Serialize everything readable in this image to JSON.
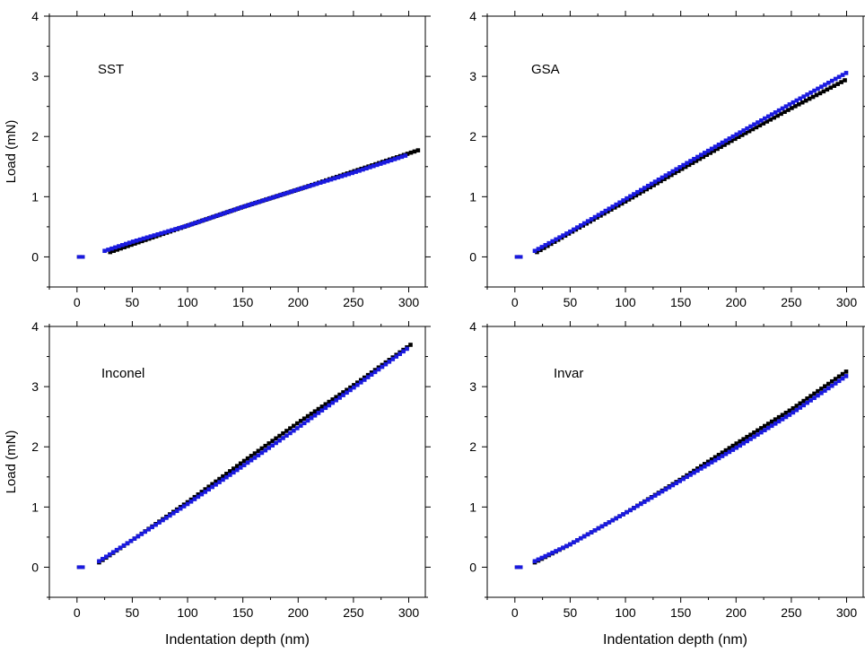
{
  "chart_data": [
    {
      "type": "scatter",
      "panel_label": "SST",
      "xlabel": "",
      "ylabel": "Load (mN)",
      "xlim": [
        -25,
        315
      ],
      "ylim": [
        -0.5,
        4
      ],
      "xticks": [
        0,
        50,
        100,
        150,
        200,
        250,
        300
      ],
      "yticks": [
        0,
        1,
        2,
        3,
        4
      ],
      "series": [
        {
          "color": "#000000",
          "x": [
            2,
            5,
            30,
            60,
            100,
            150,
            200,
            250,
            310
          ],
          "y": [
            0,
            0,
            0.08,
            0.27,
            0.52,
            0.83,
            1.12,
            1.42,
            1.78
          ]
        },
        {
          "color": "#1a1adf",
          "x": [
            2,
            5,
            25,
            50,
            100,
            150,
            200,
            250,
            300
          ],
          "y": [
            0,
            0,
            0.1,
            0.25,
            0.52,
            0.83,
            1.12,
            1.4,
            1.7
          ]
        }
      ]
    },
    {
      "type": "scatter",
      "panel_label": "GSA",
      "xlabel": "",
      "ylabel": "",
      "xlim": [
        -25,
        315
      ],
      "ylim": [
        -0.5,
        4
      ],
      "xticks": [
        0,
        50,
        100,
        150,
        200,
        250,
        300
      ],
      "yticks": [
        0,
        1,
        2,
        3,
        4
      ],
      "series": [
        {
          "color": "#000000",
          "x": [
            2,
            5,
            20,
            50,
            100,
            150,
            200,
            250,
            300
          ],
          "y": [
            0,
            0,
            0.08,
            0.4,
            0.92,
            1.45,
            1.97,
            2.47,
            2.95
          ]
        },
        {
          "color": "#1a1adf",
          "x": [
            2,
            5,
            18,
            50,
            100,
            150,
            200,
            250,
            302
          ],
          "y": [
            0,
            0,
            0.1,
            0.42,
            0.96,
            1.5,
            2.03,
            2.55,
            3.08
          ]
        }
      ]
    },
    {
      "type": "scatter",
      "panel_label": "Inconel",
      "xlabel": "Indentation depth (nm)",
      "ylabel": "Load (mN)",
      "xlim": [
        -25,
        315
      ],
      "ylim": [
        -0.5,
        4
      ],
      "xticks": [
        0,
        50,
        100,
        150,
        200,
        250,
        300
      ],
      "yticks": [
        0,
        1,
        2,
        3,
        4
      ],
      "series": [
        {
          "color": "#000000",
          "x": [
            2,
            5,
            20,
            50,
            100,
            150,
            200,
            250,
            302
          ],
          "y": [
            0,
            0,
            0.08,
            0.45,
            1.08,
            1.75,
            2.4,
            3.02,
            3.7
          ]
        },
        {
          "color": "#1a1adf",
          "x": [
            2,
            5,
            20,
            50,
            100,
            150,
            200,
            250,
            300
          ],
          "y": [
            0,
            0,
            0.1,
            0.45,
            1.05,
            1.68,
            2.32,
            2.98,
            3.65
          ]
        }
      ]
    },
    {
      "type": "scatter",
      "panel_label": "Invar",
      "xlabel": "Indentation depth (nm)",
      "ylabel": "",
      "xlim": [
        -25,
        315
      ],
      "ylim": [
        -0.5,
        4
      ],
      "xticks": [
        0,
        50,
        100,
        150,
        200,
        250,
        300
      ],
      "yticks": [
        0,
        1,
        2,
        3,
        4
      ],
      "series": [
        {
          "color": "#000000",
          "x": [
            2,
            5,
            18,
            50,
            100,
            150,
            200,
            250,
            302
          ],
          "y": [
            0,
            0,
            0.08,
            0.38,
            0.9,
            1.46,
            2.05,
            2.62,
            3.28
          ]
        },
        {
          "color": "#1a1adf",
          "x": [
            2,
            5,
            18,
            50,
            100,
            150,
            200,
            250,
            300
          ],
          "y": [
            0,
            0,
            0.1,
            0.38,
            0.9,
            1.44,
            1.98,
            2.55,
            3.18
          ]
        }
      ]
    }
  ]
}
